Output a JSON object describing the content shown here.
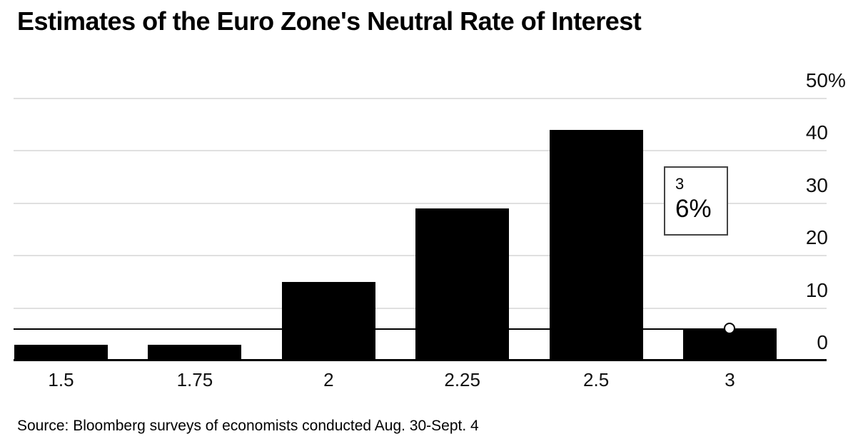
{
  "chart_data": {
    "type": "bar",
    "title": "Estimates of the Euro Zone's Neutral Rate of Interest",
    "categories": [
      "1.5",
      "1.75",
      "2",
      "2.25",
      "2.5",
      "3"
    ],
    "values": [
      3,
      3,
      15,
      29,
      44,
      6
    ],
    "unit": "%",
    "xlabel": "",
    "ylabel": "",
    "ylim": [
      0,
      50
    ],
    "yticks": [
      0,
      10,
      20,
      30,
      40,
      50
    ],
    "ytick_labels": [
      "0",
      "10",
      "20",
      "30",
      "40",
      "50%"
    ],
    "grid": true,
    "legend_position": "none",
    "axis_side": "right",
    "bar_color": "#000000"
  },
  "hover": {
    "category_index": 5,
    "category": "3",
    "value": 6
  },
  "tooltip": {
    "category": "3",
    "value": "6%"
  },
  "source": "Source: Bloomberg surveys of economists conducted Aug. 30-Sept. 4",
  "colors": {
    "bar": "#000000",
    "grid": "#e0e0e0",
    "axis_line": "#000000",
    "crosshair": "#000000",
    "background": "#ffffff",
    "tooltip_border": "#444444",
    "text": "#000000"
  }
}
